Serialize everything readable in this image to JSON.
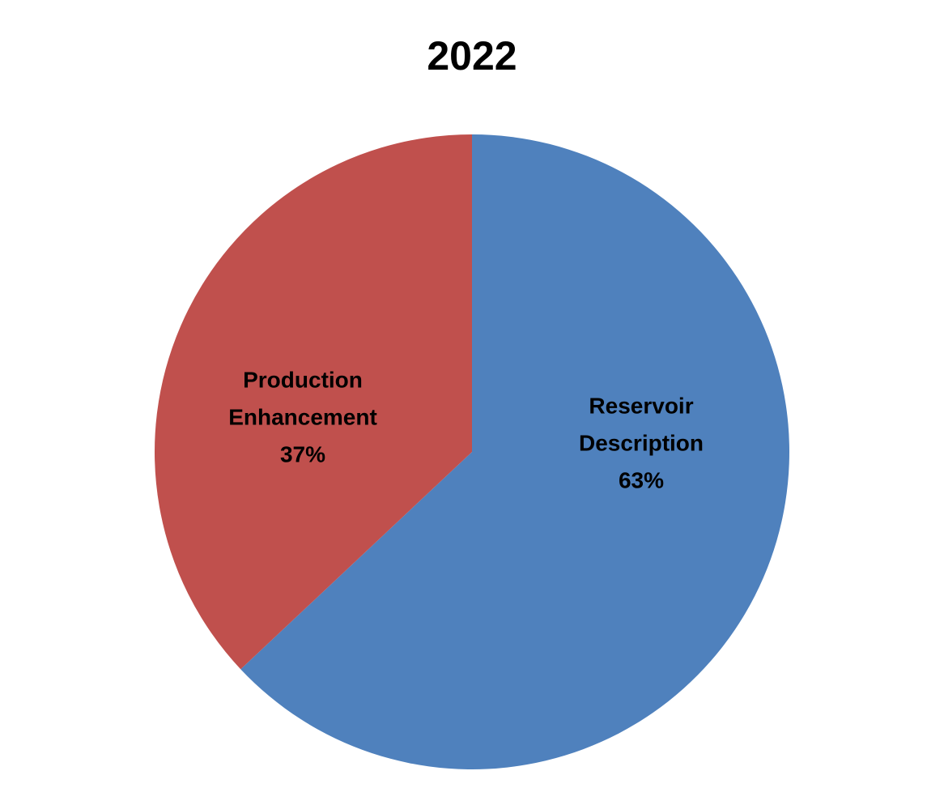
{
  "chart_data": {
    "type": "pie",
    "title": "2022",
    "categories": [
      "Reservoir Description",
      "Production Enhancement"
    ],
    "values": [
      63,
      37
    ],
    "value_labels": [
      "63%",
      "37%"
    ],
    "colors": [
      "#4f81bd",
      "#c0504d"
    ]
  }
}
